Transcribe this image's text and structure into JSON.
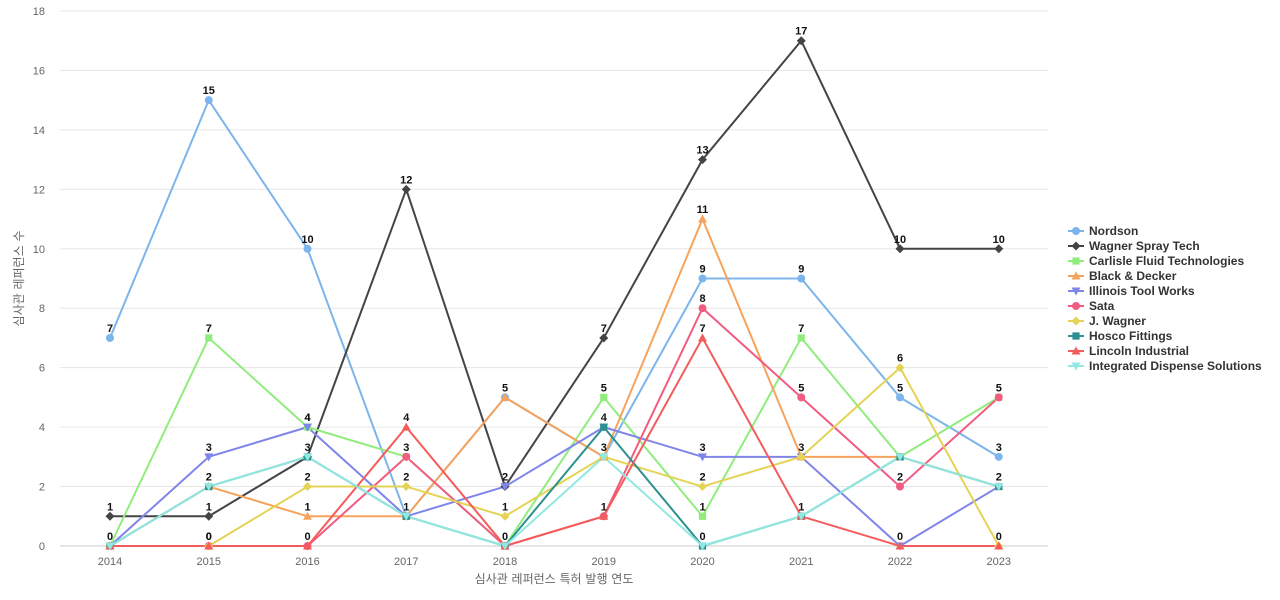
{
  "chart_data": {
    "type": "line",
    "title": "",
    "xlabel": "심사관 레퍼런스 특허 발행 연도",
    "ylabel": "심사관 레퍼런스 수",
    "x": [
      "2014",
      "2015",
      "2016",
      "2017",
      "2018",
      "2019",
      "2020",
      "2021",
      "2022",
      "2023"
    ],
    "ylim": [
      0,
      18
    ],
    "yticks": [
      0,
      2,
      4,
      6,
      8,
      10,
      12,
      14,
      16,
      18
    ],
    "grid": true,
    "legend_position": "right",
    "series": [
      {
        "name": "Nordson",
        "color": "#7cb5ec",
        "marker": "circle",
        "values": [
          7,
          15,
          10,
          1,
          5,
          3,
          9,
          9,
          5,
          3
        ],
        "labels": [
          true,
          true,
          true,
          false,
          false,
          false,
          true,
          true,
          true,
          true
        ]
      },
      {
        "name": "Wagner Spray Tech",
        "color": "#434348",
        "marker": "diamond",
        "values": [
          1,
          1,
          3,
          12,
          2,
          7,
          13,
          17,
          10,
          10
        ],
        "labels": [
          true,
          true,
          true,
          true,
          true,
          true,
          true,
          true,
          true,
          true
        ]
      },
      {
        "name": "Carlisle Fluid Technologies",
        "color": "#90ed7d",
        "marker": "square",
        "values": [
          0,
          7,
          4,
          3,
          0,
          5,
          1,
          7,
          3,
          5
        ],
        "labels": [
          false,
          true,
          true,
          false,
          false,
          true,
          true,
          true,
          false,
          false
        ]
      },
      {
        "name": "Black & Decker",
        "color": "#f7a35c",
        "marker": "triangle",
        "values": [
          0,
          2,
          1,
          1,
          5,
          3,
          11,
          3,
          3,
          2
        ],
        "labels": [
          false,
          true,
          true,
          true,
          true,
          false,
          true,
          true,
          false,
          false
        ]
      },
      {
        "name": "Illinois Tool Works",
        "color": "#8085e9",
        "marker": "triangle-down",
        "values": [
          0,
          3,
          4,
          1,
          2,
          4,
          3,
          3,
          0,
          2
        ],
        "labels": [
          false,
          true,
          true,
          false,
          false,
          true,
          true,
          false,
          true,
          true
        ]
      },
      {
        "name": "Sata",
        "color": "#f15c80",
        "marker": "circle",
        "values": [
          0,
          0,
          0,
          3,
          0,
          1,
          8,
          5,
          2,
          5
        ],
        "labels": [
          false,
          true,
          true,
          true,
          false,
          false,
          true,
          true,
          true,
          true
        ]
      },
      {
        "name": "J. Wagner",
        "color": "#e4d354",
        "marker": "diamond",
        "values": [
          0,
          0,
          2,
          2,
          1,
          3,
          2,
          3,
          6,
          0
        ],
        "labels": [
          false,
          false,
          true,
          true,
          true,
          true,
          true,
          false,
          true,
          true
        ]
      },
      {
        "name": "Hosco Fittings",
        "color": "#2b908f",
        "marker": "square",
        "values": [
          0,
          2,
          3,
          1,
          0,
          4,
          0,
          1,
          3,
          2
        ],
        "labels": [
          false,
          false,
          false,
          false,
          false,
          false,
          true,
          false,
          false,
          false
        ]
      },
      {
        "name": "Lincoln Industrial",
        "color": "#f45b5b",
        "marker": "triangle",
        "values": [
          0,
          0,
          0,
          4,
          0,
          1,
          7,
          1,
          0,
          0
        ],
        "labels": [
          true,
          true,
          false,
          true,
          true,
          true,
          true,
          true,
          false,
          false
        ]
      },
      {
        "name": "Integrated Dispense Solutions",
        "color": "#91e8e1",
        "marker": "triangle-down",
        "values": [
          0,
          2,
          3,
          1,
          0,
          3,
          0,
          1,
          3,
          2
        ],
        "labels": [
          false,
          false,
          false,
          false,
          false,
          false,
          false,
          false,
          false,
          false
        ]
      }
    ]
  }
}
